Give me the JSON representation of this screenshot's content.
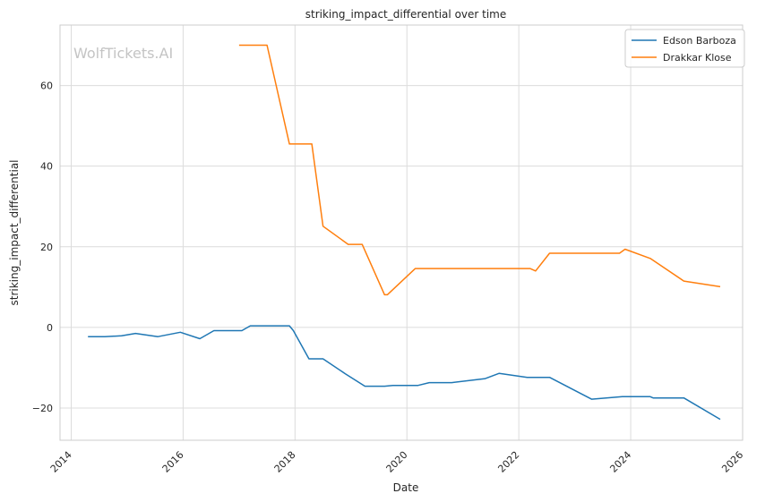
{
  "watermark": "WolfTickets.AI",
  "chart_data": {
    "type": "line",
    "title": "striking_impact_differential over time",
    "xlabel": "Date",
    "ylabel": "striking_impact_differential",
    "xlim": [
      2013.8,
      2026.0
    ],
    "ylim": [
      -28,
      75
    ],
    "x_ticks": [
      2014,
      2016,
      2018,
      2020,
      2022,
      2024,
      2026
    ],
    "y_ticks": [
      -20,
      0,
      20,
      40,
      60
    ],
    "grid": true,
    "legend_position": "top-right",
    "series": [
      {
        "name": "Edson Barboza",
        "color": "#1f77b4",
        "x": [
          2014.3,
          2014.6,
          2014.9,
          2015.15,
          2015.55,
          2015.95,
          2016.3,
          2016.55,
          2017.05,
          2017.2,
          2017.9,
          2017.97,
          2018.25,
          2018.5,
          2018.9,
          2019.25,
          2019.6,
          2019.75,
          2020.2,
          2020.4,
          2020.8,
          2021.4,
          2021.65,
          2022.15,
          2022.55,
          2023.3,
          2023.85,
          2024.35,
          2024.4,
          2024.95,
          2025.6
        ],
        "y": [
          -2.3,
          -2.3,
          -2.1,
          -1.5,
          -2.3,
          -1.2,
          -2.8,
          -0.8,
          -0.8,
          0.4,
          0.4,
          -0.8,
          -7.8,
          -7.8,
          -11.5,
          -14.6,
          -14.6,
          -14.4,
          -14.4,
          -13.7,
          -13.7,
          -12.7,
          -11.4,
          -12.4,
          -12.4,
          -17.8,
          -17.2,
          -17.2,
          -17.5,
          -17.5,
          -22.8
        ]
      },
      {
        "name": "Drakkar Klose",
        "color": "#ff7f0e",
        "x": [
          2017.0,
          2017.5,
          2017.9,
          2018.3,
          2018.5,
          2018.95,
          2019.2,
          2019.6,
          2019.65,
          2020.15,
          2022.2,
          2022.3,
          2022.55,
          2023.8,
          2023.9,
          2024.35,
          2024.95,
          2025.6
        ],
        "y": [
          70,
          70,
          45.5,
          45.5,
          25.1,
          20.6,
          20.6,
          8.1,
          8.1,
          14.6,
          14.6,
          14,
          18.4,
          18.4,
          19.4,
          17.1,
          11.5,
          10.1
        ]
      }
    ]
  }
}
